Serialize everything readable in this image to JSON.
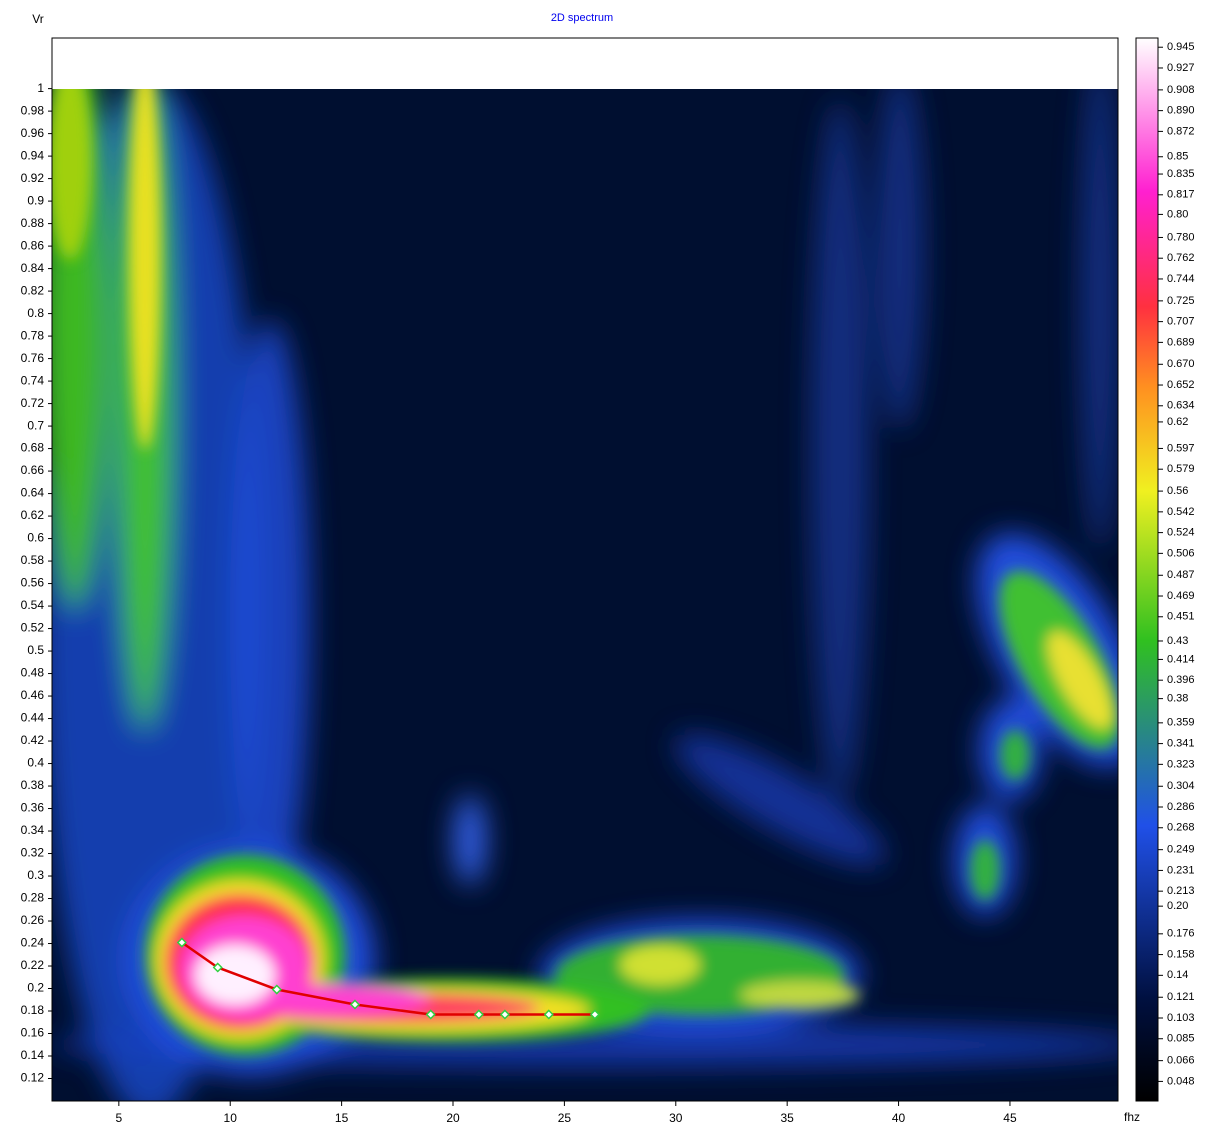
{
  "chart_data": {
    "type": "line",
    "title": "2D spectrum",
    "y_label": "Vr",
    "x_label": "fhz",
    "x": [
      7.83,
      9.44,
      12.09,
      15.6,
      19.0,
      21.16,
      22.33,
      24.3,
      26.37
    ],
    "series": [
      {
        "color": "#e00000",
        "values": [
          0.2409,
          0.2187,
          0.1991,
          0.1858,
          0.1769,
          0.1769,
          0.1769,
          0.1769,
          0.1769
        ]
      }
    ],
    "xlim": [
      2,
      49.85
    ],
    "xticks": [
      5,
      10,
      15,
      20,
      25,
      30,
      35,
      40,
      45
    ],
    "ylim": [
      0.1,
      1.045
    ],
    "yticks": [
      0.12,
      0.14,
      0.16,
      0.18,
      0.2,
      0.22,
      0.24,
      0.26,
      0.28,
      0.3,
      0.32,
      0.34,
      0.36,
      0.38,
      0.4,
      0.42,
      0.44,
      0.46,
      0.48,
      0.5,
      0.52,
      0.54,
      0.56,
      0.58,
      0.6,
      0.62,
      0.64,
      0.66,
      0.68,
      0.7,
      0.72,
      0.74,
      0.76,
      0.78,
      0.8,
      0.82,
      0.84,
      0.86,
      0.88,
      0.9,
      0.92,
      0.94,
      0.96,
      0.98,
      1
    ],
    "zlim": [
      0.031,
      0.953
    ],
    "zticks": [
      0.945,
      0.927,
      0.908,
      {
        "value": 0.89,
        "label": "0.890"
      },
      0.872,
      0.85,
      0.835,
      0.817,
      {
        "value": 0.8,
        "label": "0.80"
      },
      {
        "value": 0.78,
        "label": "0.780"
      },
      0.762,
      0.744,
      0.725,
      0.707,
      0.689,
      {
        "value": 0.67,
        "label": "0.670"
      },
      0.652,
      0.634,
      0.62,
      0.597,
      0.579,
      0.56,
      0.542,
      0.524,
      0.506,
      0.487,
      0.469,
      0.451,
      0.43,
      0.414,
      0.396,
      0.38,
      0.359,
      0.341,
      0.323,
      0.304,
      0.286,
      0.268,
      0.249,
      0.231,
      0.213,
      {
        "value": 0.2,
        "label": "0.20"
      },
      0.176,
      0.158,
      0.14,
      0.121,
      0.103,
      0.085,
      0.066,
      0.048
    ],
    "colorscale": [
      [
        0.031,
        "#000000"
      ],
      [
        0.12,
        "#001040"
      ],
      [
        0.27,
        "#2050e8"
      ],
      [
        0.43,
        "#30c020"
      ],
      [
        0.56,
        "#f0f020"
      ],
      [
        0.65,
        "#ff9020"
      ],
      [
        0.72,
        "#ff3040"
      ],
      [
        0.82,
        "#ff20d0"
      ],
      [
        0.953,
        "#ffffff"
      ]
    ]
  }
}
